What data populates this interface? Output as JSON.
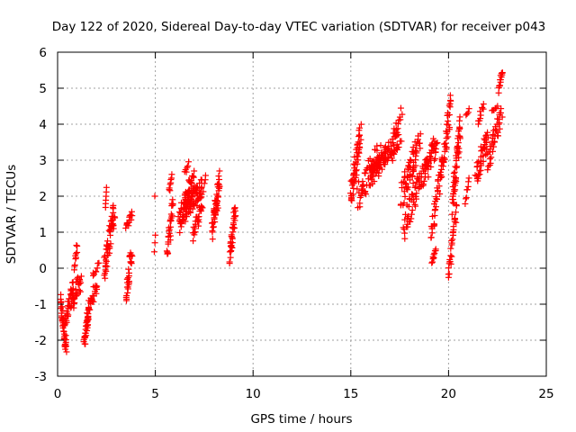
{
  "chart_data": {
    "type": "scatter",
    "title": "Day 122 of 2020, Sidereal Day-to-day VTEC variation (SDTVAR) for receiver p043",
    "xlabel": "GPS time / hours",
    "ylabel": "SDTVAR / TECUs",
    "xlim": [
      0,
      25
    ],
    "ylim": [
      -3,
      6
    ],
    "xticks": [
      0,
      5,
      10,
      15,
      20,
      25
    ],
    "yticks": [
      -3,
      -2,
      -1,
      0,
      1,
      2,
      3,
      4,
      5,
      6
    ],
    "grid": true,
    "marker": "+",
    "color": "#ff0000",
    "tracks": [
      {
        "x0": 0.15,
        "x1": 0.45,
        "y0": -1.0,
        "y1": -2.2,
        "n": 40,
        "s": 0.3
      },
      {
        "x0": 0.4,
        "x1": 0.8,
        "y0": -1.6,
        "y1": -0.5,
        "n": 30,
        "s": 0.3
      },
      {
        "x0": 0.7,
        "x1": 1.2,
        "y0": -1.0,
        "y1": -0.3,
        "n": 30,
        "s": 0.3
      },
      {
        "x0": 0.85,
        "x1": 1.0,
        "y0": 0.0,
        "y1": 0.65,
        "n": 10,
        "s": 0.15
      },
      {
        "x0": 1.35,
        "x1": 1.6,
        "y0": -2.2,
        "y1": -1.2,
        "n": 28,
        "s": 0.2
      },
      {
        "x0": 1.5,
        "x1": 2.0,
        "y0": -1.3,
        "y1": -0.5,
        "n": 28,
        "s": 0.2
      },
      {
        "x0": 1.8,
        "x1": 2.1,
        "y0": -0.2,
        "y1": 0.1,
        "n": 8,
        "s": 0.08
      },
      {
        "x0": 2.4,
        "x1": 2.9,
        "y0": 0.0,
        "y1": 1.6,
        "n": 55,
        "s": 0.35
      },
      {
        "x0": 2.45,
        "x1": 2.5,
        "y0": 1.7,
        "y1": 2.2,
        "n": 6,
        "s": 0.05
      },
      {
        "x0": 3.5,
        "x1": 3.8,
        "y0": -0.7,
        "y1": 0.5,
        "n": 30,
        "s": 0.3
      },
      {
        "x0": 3.5,
        "x1": 3.8,
        "y0": 1.1,
        "y1": 1.5,
        "n": 14,
        "s": 0.1
      },
      {
        "x0": 4.95,
        "x1": 5.0,
        "y0": 2.0,
        "y1": 2.0,
        "n": 1,
        "s": 0.0
      },
      {
        "x0": 4.95,
        "x1": 5.0,
        "y0": 0.5,
        "y1": 1.0,
        "n": 3,
        "s": 0.15
      },
      {
        "x0": 5.6,
        "x1": 5.9,
        "y0": 0.4,
        "y1": 1.8,
        "n": 30,
        "s": 0.3
      },
      {
        "x0": 5.7,
        "x1": 5.85,
        "y0": 2.1,
        "y1": 2.6,
        "n": 8,
        "s": 0.1
      },
      {
        "x0": 6.2,
        "x1": 7.0,
        "y0": 1.3,
        "y1": 2.5,
        "n": 70,
        "s": 0.35
      },
      {
        "x0": 6.5,
        "x1": 7.5,
        "y0": 1.6,
        "y1": 2.3,
        "n": 60,
        "s": 0.3
      },
      {
        "x0": 6.5,
        "x1": 6.7,
        "y0": 2.6,
        "y1": 3.0,
        "n": 6,
        "s": 0.1
      },
      {
        "x0": 6.9,
        "x1": 7.4,
        "y0": 0.9,
        "y1": 1.7,
        "n": 25,
        "s": 0.2
      },
      {
        "x0": 7.9,
        "x1": 8.3,
        "y0": 1.0,
        "y1": 2.5,
        "n": 40,
        "s": 0.3
      },
      {
        "x0": 8.0,
        "x1": 8.2,
        "y0": 1.5,
        "y1": 1.8,
        "n": 12,
        "s": 0.15
      },
      {
        "x0": 8.8,
        "x1": 9.1,
        "y0": 0.3,
        "y1": 1.7,
        "n": 35,
        "s": 0.3
      },
      {
        "x0": 15.0,
        "x1": 15.5,
        "y0": 2.0,
        "y1": 3.8,
        "n": 55,
        "s": 0.35
      },
      {
        "x0": 15.4,
        "x1": 16.5,
        "y0": 2.0,
        "y1": 3.3,
        "n": 60,
        "s": 0.35
      },
      {
        "x0": 16.0,
        "x1": 17.5,
        "y0": 2.6,
        "y1": 3.6,
        "n": 90,
        "s": 0.3
      },
      {
        "x0": 17.2,
        "x1": 17.6,
        "y0": 3.7,
        "y1": 4.4,
        "n": 12,
        "s": 0.15
      },
      {
        "x0": 17.6,
        "x1": 18.5,
        "y0": 2.0,
        "y1": 3.5,
        "n": 60,
        "s": 0.35
      },
      {
        "x0": 17.7,
        "x1": 18.6,
        "y0": 1.1,
        "y1": 2.6,
        "n": 45,
        "s": 0.35
      },
      {
        "x0": 18.6,
        "x1": 19.4,
        "y0": 2.4,
        "y1": 3.5,
        "n": 55,
        "s": 0.35
      },
      {
        "x0": 19.1,
        "x1": 19.6,
        "y0": 0.9,
        "y1": 2.6,
        "n": 30,
        "s": 0.3
      },
      {
        "x0": 19.15,
        "x1": 19.35,
        "y0": 0.15,
        "y1": 0.5,
        "n": 10,
        "s": 0.08
      },
      {
        "x0": 19.6,
        "x1": 20.1,
        "y0": 2.6,
        "y1": 4.5,
        "n": 45,
        "s": 0.35
      },
      {
        "x0": 20.0,
        "x1": 20.4,
        "y0": -0.2,
        "y1": 1.6,
        "n": 30,
        "s": 0.25
      },
      {
        "x0": 20.2,
        "x1": 20.6,
        "y0": 1.8,
        "y1": 3.9,
        "n": 50,
        "s": 0.35
      },
      {
        "x0": 20.85,
        "x1": 21.05,
        "y0": 1.8,
        "y1": 2.5,
        "n": 8,
        "s": 0.1
      },
      {
        "x0": 20.9,
        "x1": 21.05,
        "y0": 4.3,
        "y1": 4.4,
        "n": 4,
        "s": 0.05
      },
      {
        "x0": 21.4,
        "x1": 22.0,
        "y0": 2.6,
        "y1": 3.6,
        "n": 40,
        "s": 0.3
      },
      {
        "x0": 21.5,
        "x1": 21.8,
        "y0": 4.1,
        "y1": 4.5,
        "n": 10,
        "s": 0.1
      },
      {
        "x0": 22.0,
        "x1": 22.7,
        "y0": 2.9,
        "y1": 4.2,
        "n": 40,
        "s": 0.3
      },
      {
        "x0": 22.2,
        "x1": 22.5,
        "y0": 4.4,
        "y1": 4.5,
        "n": 6,
        "s": 0.05
      },
      {
        "x0": 22.55,
        "x1": 22.75,
        "y0": 4.9,
        "y1": 5.5,
        "n": 15,
        "s": 0.1
      }
    ]
  }
}
